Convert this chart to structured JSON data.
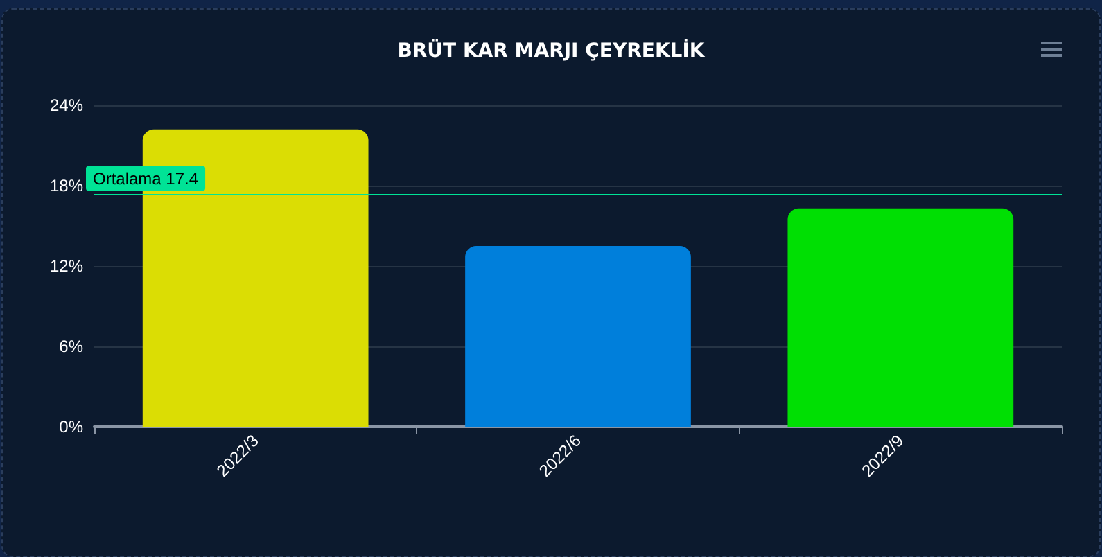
{
  "chart_data": {
    "type": "bar",
    "title": "BRÜT KAR MARJI ÇEYREKLİK",
    "categories": [
      "2022/3",
      "2022/6",
      "2022/9"
    ],
    "values": [
      22.2,
      13.5,
      16.3
    ],
    "colors": [
      "#dbdd04",
      "#007fdb",
      "#00df03"
    ],
    "ylim": [
      0,
      24
    ],
    "yticks": [
      {
        "value": 0,
        "label": "0%"
      },
      {
        "value": 6,
        "label": "6%"
      },
      {
        "value": 12,
        "label": "12%"
      },
      {
        "value": 18,
        "label": "18%"
      },
      {
        "value": 24,
        "label": "24%"
      }
    ],
    "grid": "y",
    "ref_lines": [
      {
        "axis": "y",
        "value": 17.4,
        "label": "Ortalama 17.4",
        "color": "#00e396"
      }
    ]
  }
}
